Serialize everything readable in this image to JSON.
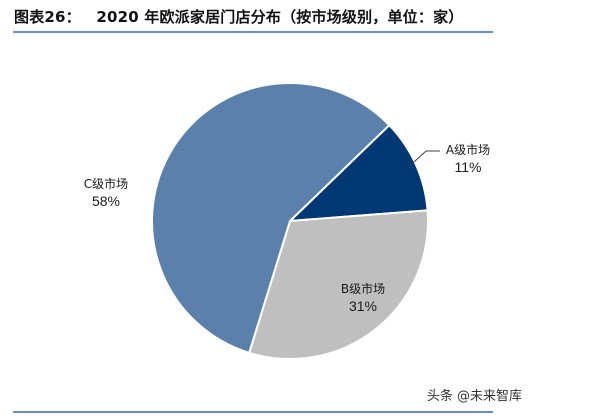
{
  "header": {
    "figure_label": "图表26：",
    "title": "2020 年欧派家居门店分布（按市场级别，单位：家）"
  },
  "watermark": "头条 @未来智库",
  "colors": {
    "a_market": "#003876",
    "b_market": "#bfbfbf",
    "c_market": "#5b80ab",
    "rule": "#6b8fc0"
  },
  "labels": {
    "a": {
      "name": "A级市场",
      "pct": "11%"
    },
    "b": {
      "name": "B级市场",
      "pct": "31%"
    },
    "c": {
      "name": "C级市场",
      "pct": "58%"
    }
  },
  "chart_data": {
    "type": "pie",
    "title": "2020 年欧派家居门店分布（按市场级别，单位：家）",
    "categories": [
      "A级市场",
      "B级市场",
      "C级市场"
    ],
    "values": [
      11,
      31,
      58
    ],
    "unit": "%",
    "colors": [
      "#003876",
      "#bfbfbf",
      "#5b80ab"
    ],
    "start_angle_deg": 46,
    "direction": "clockwise",
    "legend": "none (data labels on/near slices)"
  }
}
